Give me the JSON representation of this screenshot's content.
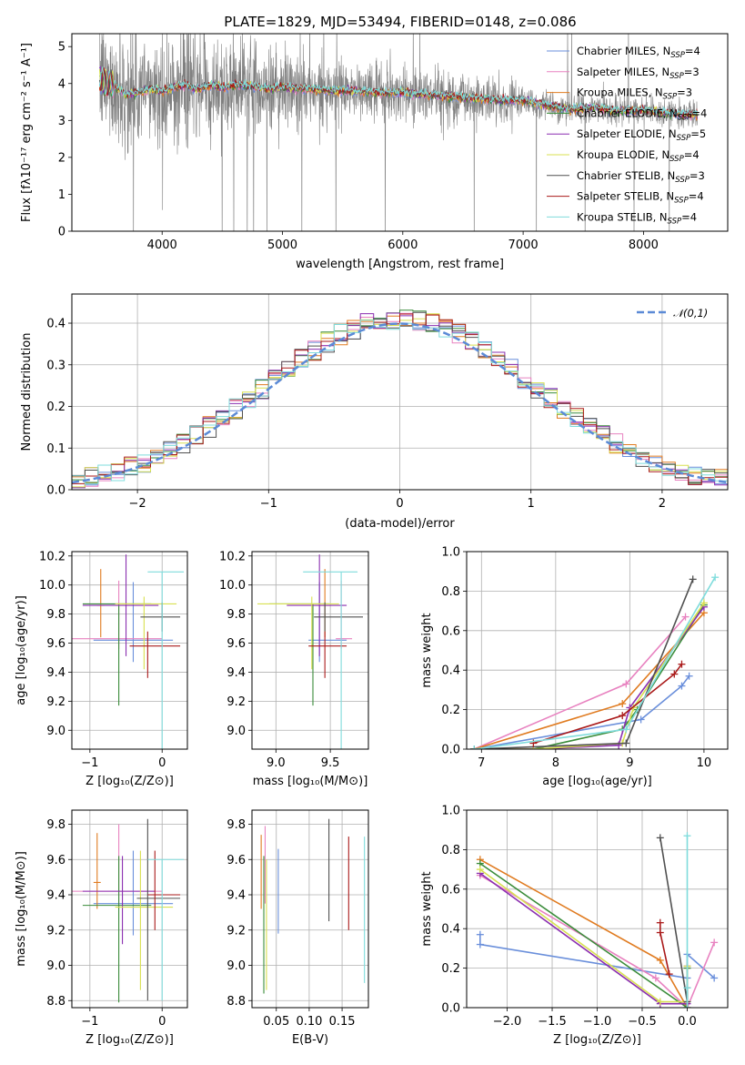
{
  "figure_title": "PLATE=1829, MJD=53494, FIBERID=0148, z=0.086",
  "colors": {
    "Chabrier MILES": "#6a8fdb",
    "Salpeter MILES": "#e882c0",
    "Kroupa MILES": "#e07b20",
    "Chabrier ELODIE": "#3a8c3a",
    "Salpeter ELODIE": "#8b2fb0",
    "Kroupa ELODIE": "#d8e050",
    "Chabrier STELIB": "#505050",
    "Salpeter STELIB": "#aa1a1a",
    "Kroupa STELIB": "#7fdcdc",
    "data": "#808080"
  },
  "chart_data": [
    {
      "id": "spectrum",
      "type": "line",
      "xlabel": "wavelength [Angstrom, rest frame]",
      "ylabel": "Flux [fλ10⁻¹⁷ erg cm⁻² s⁻¹ A⁻¹]",
      "xlim": [
        3250,
        8700
      ],
      "ylim": [
        0,
        5.35
      ],
      "xticks": [
        4000,
        5000,
        6000,
        7000,
        8000
      ],
      "yticks": [
        0,
        1,
        2,
        3,
        4,
        5
      ],
      "grid": false,
      "legend_position": "upper right",
      "legend": [
        {
          "name": "Chabrier MILES",
          "label_main": "Chabrier MILES, N",
          "label_sub": "SSP",
          "label_tail": "=4"
        },
        {
          "name": "Salpeter MILES",
          "label_main": "Salpeter MILES, N",
          "label_sub": "SSP",
          "label_tail": "=3"
        },
        {
          "name": "Kroupa MILES",
          "label_main": "Kroupa MILES, N",
          "label_sub": "SSP",
          "label_tail": "=3"
        },
        {
          "name": "Chabrier ELODIE",
          "label_main": "Chabrier ELODIE, N",
          "label_sub": "SSP",
          "label_tail": "=4"
        },
        {
          "name": "Salpeter ELODIE",
          "label_main": "Salpeter ELODIE, N",
          "label_sub": "SSP",
          "label_tail": "=5"
        },
        {
          "name": "Kroupa ELODIE",
          "label_main": "Kroupa ELODIE, N",
          "label_sub": "SSP",
          "label_tail": "=4"
        },
        {
          "name": "Chabrier STELIB",
          "label_main": "Chabrier STELIB, N",
          "label_sub": "SSP",
          "label_tail": "=3"
        },
        {
          "name": "Salpeter STELIB",
          "label_main": "Salpeter STELIB, N",
          "label_sub": "SSP",
          "label_tail": "=4"
        },
        {
          "name": "Kroupa STELIB",
          "label_main": "Kroupa STELIB, N",
          "label_sub": "SSP",
          "label_tail": "=4"
        }
      ],
      "continuum": {
        "x": [
          3480,
          3600,
          3700,
          3800,
          3900,
          4000,
          4100,
          4200,
          4300,
          4400,
          4500,
          4600,
          4700,
          4800,
          4900,
          5000,
          5200,
          5400,
          5600,
          5800,
          6000,
          6200,
          6400,
          6600,
          6800,
          7000,
          7200,
          7400,
          7600,
          7800,
          8000,
          8200,
          8450
        ],
        "y": [
          4.1,
          3.95,
          3.7,
          3.75,
          3.85,
          3.8,
          3.9,
          3.95,
          3.85,
          3.95,
          3.9,
          3.95,
          3.95,
          3.9,
          3.85,
          3.9,
          3.85,
          3.8,
          3.8,
          3.75,
          3.75,
          3.7,
          3.65,
          3.6,
          3.55,
          3.55,
          3.4,
          3.3,
          3.35,
          3.25,
          3.3,
          3.2,
          3.15
        ]
      },
      "data_noise_note_range": [
        3480,
        8450
      ]
    },
    {
      "id": "residuals",
      "type": "histogram",
      "xlabel": "(data-model)/error",
      "ylabel": "Normed distribution",
      "xlim": [
        -2.5,
        2.5
      ],
      "ylim": [
        0,
        0.47
      ],
      "xticks": [
        -2,
        -1,
        0,
        1,
        2
      ],
      "yticks": [
        0.0,
        0.1,
        0.2,
        0.3,
        0.4
      ],
      "grid": true,
      "legend": {
        "label": "𝒩(0,1)"
      },
      "bin_width": 0.1,
      "bin_start": -2.5
    },
    {
      "id": "age_vs_Z",
      "type": "errorbar",
      "xlabel": "Z [log₁₀(Z/Z⊙)]",
      "ylabel": "age  [log₁₀(age/yr)]",
      "xlim": [
        -1.25,
        0.35
      ],
      "ylim": [
        8.87,
        10.23
      ],
      "xticks": [
        -1,
        0
      ],
      "yticks": [
        9.0,
        9.2,
        9.4,
        9.6,
        9.8,
        10.0,
        10.2
      ],
      "grid": true,
      "points": [
        {
          "model": "Chabrier MILES",
          "x": -0.4,
          "xerr": [
            0.55,
            0.55
          ],
          "y": 9.62,
          "yerr": [
            0.15,
            0.4
          ]
        },
        {
          "model": "Salpeter MILES",
          "x": -0.6,
          "xerr": [
            0.7,
            0.6
          ],
          "y": 9.63,
          "yerr": [
            0.07,
            0.4
          ]
        },
        {
          "model": "Kroupa MILES",
          "x": -0.85,
          "xerr": [
            0.05,
            0.05
          ],
          "y": 9.86,
          "yerr": [
            0.22,
            0.25
          ]
        },
        {
          "model": "Chabrier ELODIE",
          "x": -0.6,
          "xerr": [
            0.5,
            0.45
          ],
          "y": 9.87,
          "yerr": [
            0.7,
            0.0
          ]
        },
        {
          "model": "Salpeter ELODIE",
          "x": -0.5,
          "xerr": [
            0.6,
            0.45
          ],
          "y": 9.86,
          "yerr": [
            0.35,
            0.35
          ]
        },
        {
          "model": "Kroupa ELODIE",
          "x": -0.25,
          "xerr": [
            0.4,
            0.45
          ],
          "y": 9.87,
          "yerr": [
            0.45,
            0.05
          ]
        },
        {
          "model": "Chabrier STELIB",
          "x": 0.0,
          "xerr": [
            0.3,
            0.25
          ],
          "y": 9.78,
          "yerr": [
            0.1,
            0.1
          ]
        },
        {
          "model": "Salpeter STELIB",
          "x": -0.2,
          "xerr": [
            0.25,
            0.45
          ],
          "y": 9.58,
          "yerr": [
            0.22,
            0.1
          ]
        },
        {
          "model": "Kroupa STELIB",
          "x": 0.0,
          "xerr": [
            0.2,
            0.3
          ],
          "y": 10.09,
          "yerr": [
            1.25,
            0.0
          ]
        }
      ]
    },
    {
      "id": "age_vs_mass",
      "type": "errorbar",
      "xlabel": "mass [log₁₀(M/M⊙)]",
      "ylabel": "",
      "xlim": [
        8.78,
        9.85
      ],
      "ylim": [
        8.87,
        10.23
      ],
      "xticks": [
        9.0,
        9.5
      ],
      "yticks": [
        9.0,
        9.2,
        9.4,
        9.6,
        9.8,
        10.0,
        10.2
      ],
      "grid": true,
      "points": [
        {
          "model": "Chabrier MILES",
          "x": 9.4,
          "xerr": [
            0.1,
            0.25
          ],
          "y": 9.62,
          "yerr": [
            0.15,
            0.4
          ]
        },
        {
          "model": "Salpeter MILES",
          "x": 9.6,
          "xerr": [
            0.05,
            0.1
          ],
          "y": 9.63,
          "yerr": [
            0.07,
            0.4
          ]
        },
        {
          "model": "Kroupa MILES",
          "x": 9.45,
          "xerr": [
            0.05,
            0.05
          ],
          "y": 9.86,
          "yerr": [
            0.22,
            0.25
          ]
        },
        {
          "model": "Chabrier ELODIE",
          "x": 9.34,
          "xerr": [
            0.4,
            0.15
          ],
          "y": 9.87,
          "yerr": [
            0.7,
            0.0
          ]
        },
        {
          "model": "Salpeter ELODIE",
          "x": 9.4,
          "xerr": [
            0.3,
            0.25
          ],
          "y": 9.86,
          "yerr": [
            0.35,
            0.35
          ]
        },
        {
          "model": "Kroupa ELODIE",
          "x": 9.33,
          "xerr": [
            0.5,
            0.25
          ],
          "y": 9.87,
          "yerr": [
            0.45,
            0.05
          ]
        },
        {
          "model": "Chabrier STELIB",
          "x": 9.45,
          "xerr": [
            0.1,
            0.35
          ],
          "y": 9.78,
          "yerr": [
            0.1,
            0.1
          ]
        },
        {
          "model": "Salpeter STELIB",
          "x": 9.45,
          "xerr": [
            0.15,
            0.2
          ],
          "y": 9.58,
          "yerr": [
            0.22,
            0.1
          ]
        },
        {
          "model": "Kroupa STELIB",
          "x": 9.6,
          "xerr": [
            0.35,
            0.15
          ],
          "y": 10.09,
          "yerr": [
            1.25,
            0.0
          ]
        }
      ]
    },
    {
      "id": "mass_weight_vs_age",
      "type": "line",
      "xlabel": "age  [log₁₀(age/yr)]",
      "ylabel": "mass weight",
      "xlim": [
        6.8,
        10.32
      ],
      "ylim": [
        0,
        1.0
      ],
      "xticks": [
        7,
        8,
        9,
        10
      ],
      "yticks": [
        0.0,
        0.2,
        0.4,
        0.6,
        0.8,
        1.0
      ],
      "grid": true,
      "series": [
        {
          "name": "Chabrier MILES",
          "x": [
            6.9,
            9.15,
            9.7,
            9.8
          ],
          "y": [
            0.0,
            0.15,
            0.32,
            0.37
          ]
        },
        {
          "name": "Salpeter MILES",
          "x": [
            6.9,
            8.95,
            9.75
          ],
          "y": [
            0.0,
            0.33,
            0.67
          ]
        },
        {
          "name": "Kroupa MILES",
          "x": [
            6.9,
            8.9,
            10.0
          ],
          "y": [
            0.0,
            0.23,
            0.69
          ]
        },
        {
          "name": "Chabrier ELODIE",
          "x": [
            6.9,
            7.7,
            8.9,
            9.1,
            10.0
          ],
          "y": [
            0.0,
            0.0,
            0.1,
            0.2,
            0.73
          ]
        },
        {
          "name": "Salpeter ELODIE",
          "x": [
            6.9,
            7.7,
            8.85,
            9.0,
            10.0
          ],
          "y": [
            0.0,
            0.0,
            0.02,
            0.21,
            0.72
          ]
        },
        {
          "name": "Kroupa ELODIE",
          "x": [
            6.9,
            7.7,
            8.9,
            9.05,
            10.0
          ],
          "y": [
            0.0,
            0.0,
            0.03,
            0.21,
            0.74
          ]
        },
        {
          "name": "Chabrier STELIB",
          "x": [
            6.9,
            8.95,
            9.85
          ],
          "y": [
            0.0,
            0.03,
            0.86
          ]
        },
        {
          "name": "Salpeter STELIB",
          "x": [
            7.7,
            8.9,
            9.6,
            9.7
          ],
          "y": [
            0.03,
            0.17,
            0.38,
            0.43
          ]
        },
        {
          "name": "Kroupa STELIB",
          "x": [
            6.9,
            8.95,
            10.15
          ],
          "y": [
            0.0,
            0.1,
            0.87
          ]
        }
      ]
    },
    {
      "id": "mass_vs_Z",
      "type": "errorbar",
      "xlabel": "Z [log₁₀(Z/Z⊙)]",
      "ylabel": "mass [log₁₀(M/M⊙)]",
      "xlim": [
        -1.25,
        0.35
      ],
      "ylim": [
        8.76,
        9.88
      ],
      "xticks": [
        -1,
        0
      ],
      "yticks": [
        8.8,
        9.0,
        9.2,
        9.4,
        9.6,
        9.8
      ],
      "grid": true,
      "points": [
        {
          "model": "Chabrier MILES",
          "x": -0.4,
          "xerr": [
            0.55,
            0.55
          ],
          "y": 9.35,
          "yerr": [
            0.18,
            0.3
          ]
        },
        {
          "model": "Salpeter MILES",
          "x": -0.6,
          "xerr": [
            0.7,
            0.6
          ],
          "y": 9.42,
          "yerr": [
            0.1,
            0.38
          ]
        },
        {
          "model": "Kroupa MILES",
          "x": -0.9,
          "xerr": [
            0.05,
            0.05
          ],
          "y": 9.47,
          "yerr": [
            0.15,
            0.28
          ]
        },
        {
          "model": "Chabrier ELODIE",
          "x": -0.6,
          "xerr": [
            0.5,
            0.45
          ],
          "y": 9.34,
          "yerr": [
            0.55,
            0.28
          ]
        },
        {
          "model": "Salpeter ELODIE",
          "x": -0.55,
          "xerr": [
            0.55,
            0.45
          ],
          "y": 9.42,
          "yerr": [
            0.3,
            0.2
          ]
        },
        {
          "model": "Kroupa ELODIE",
          "x": -0.3,
          "xerr": [
            0.35,
            0.45
          ],
          "y": 9.33,
          "yerr": [
            0.47,
            0.32
          ]
        },
        {
          "model": "Chabrier STELIB",
          "x": -0.2,
          "xerr": [
            0.15,
            0.45
          ],
          "y": 9.38,
          "yerr": [
            0.58,
            0.45
          ]
        },
        {
          "model": "Salpeter STELIB",
          "x": -0.1,
          "xerr": [
            0.1,
            0.35
          ],
          "y": 9.4,
          "yerr": [
            0.2,
            0.25
          ]
        },
        {
          "model": "Kroupa STELIB",
          "x": 0.0,
          "xerr": [
            0.2,
            0.3
          ],
          "y": 9.6,
          "yerr": [
            0.8,
            0.0
          ]
        }
      ]
    },
    {
      "id": "mass_vs_ebv",
      "type": "errorbar",
      "xlabel": "E(B-V)",
      "ylabel": "",
      "xlim": [
        0.013,
        0.19
      ],
      "ylim": [
        8.76,
        9.88
      ],
      "xticks": [
        0.05,
        0.1,
        0.15
      ],
      "yticks": [
        8.8,
        9.0,
        9.2,
        9.4,
        9.6,
        9.8
      ],
      "grid": true,
      "points": [
        {
          "model": "Kroupa MILES",
          "x": 0.027,
          "y": 9.6,
          "yerr": [
            0.28,
            0.14
          ]
        },
        {
          "model": "Salpeter MILES",
          "x": 0.033,
          "y": 9.5,
          "yerr": [
            0.15,
            0.29
          ]
        },
        {
          "model": "Chabrier ELODIE",
          "x": 0.031,
          "y": 9.22,
          "yerr": [
            0.38,
            0.4
          ]
        },
        {
          "model": "Kroupa ELODIE",
          "x": 0.035,
          "y": 9.3,
          "yerr": [
            0.44,
            0.3
          ]
        },
        {
          "model": "Chabrier MILES",
          "x": 0.053,
          "y": 9.42,
          "yerr": [
            0.24,
            0.24
          ]
        },
        {
          "model": "Chabrier STELIB",
          "x": 0.13,
          "y": 9.55,
          "yerr": [
            0.3,
            0.28
          ]
        },
        {
          "model": "Salpeter STELIB",
          "x": 0.16,
          "y": 9.47,
          "yerr": [
            0.27,
            0.26
          ]
        },
        {
          "model": "Kroupa STELIB",
          "x": 0.184,
          "y": 9.31,
          "yerr": [
            0.41,
            0.42
          ]
        }
      ]
    },
    {
      "id": "mass_weight_vs_Z",
      "type": "line",
      "xlabel": "Z [log₁₀(Z/Z⊙)]",
      "ylabel": "mass weight",
      "xlim": [
        -2.45,
        0.45
      ],
      "ylim": [
        0,
        1.0
      ],
      "xticks": [
        -2.0,
        -1.5,
        -1.0,
        -0.5,
        0.0
      ],
      "yticks": [
        0.0,
        0.2,
        0.4,
        0.6,
        0.8,
        1.0
      ],
      "grid": true,
      "series": [
        {
          "name": "Chabrier MILES",
          "x": [
            -2.3,
            -2.3,
            0.0,
            0.0,
            0.3
          ],
          "y": [
            0.37,
            0.32,
            0.15,
            0.27,
            0.15
          ]
        },
        {
          "name": "Salpeter MILES",
          "x": [
            -2.3,
            -0.35,
            0.0,
            0.3
          ],
          "y": [
            0.67,
            0.15,
            0.0,
            0.33
          ]
        },
        {
          "name": "Kroupa MILES",
          "x": [
            -2.3,
            -0.3,
            0.0
          ],
          "y": [
            0.75,
            0.24,
            0.0
          ]
        },
        {
          "name": "Chabrier ELODIE",
          "x": [
            -2.3,
            0.0,
            0.0
          ],
          "y": [
            0.73,
            0.0,
            0.2
          ]
        },
        {
          "name": "Salpeter ELODIE",
          "x": [
            -2.3,
            -0.3,
            0.0,
            0.0
          ],
          "y": [
            0.68,
            0.02,
            0.02,
            0.21
          ]
        },
        {
          "name": "Kroupa ELODIE",
          "x": [
            -2.3,
            -0.3,
            0.0,
            0.0
          ],
          "y": [
            0.7,
            0.03,
            0.03,
            0.21
          ]
        },
        {
          "name": "Chabrier STELIB",
          "x": [
            -0.3,
            0.0,
            0.0
          ],
          "y": [
            0.86,
            0.03,
            0.1
          ]
        },
        {
          "name": "Salpeter STELIB",
          "x": [
            -0.3,
            -0.3,
            -0.2
          ],
          "y": [
            0.43,
            0.38,
            0.17
          ]
        },
        {
          "name": "Kroupa STELIB",
          "x": [
            0.0,
            0.0,
            0.0
          ],
          "y": [
            0.87,
            0.1,
            0.0
          ]
        }
      ]
    }
  ]
}
